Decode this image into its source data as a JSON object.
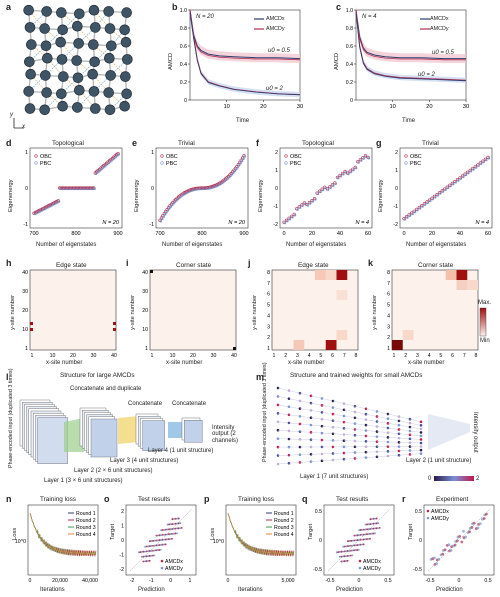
{
  "panels": {
    "a": {
      "label": "a",
      "axis_y": "y",
      "axis_x": "x"
    },
    "b": {
      "label": "b",
      "ylabel": "AMCD",
      "xlabel": "Time",
      "n_text": "N = 20",
      "legend": [
        "AMCDx",
        "AMCDy"
      ],
      "ann_hi": "u0 = 0.5",
      "ann_lo": "u0 = 2",
      "xticks": [
        "10",
        "20",
        "30"
      ],
      "yticks": [
        "0",
        "0.2",
        "0.4",
        "0.6",
        "0.8",
        "1.0"
      ]
    },
    "c": {
      "label": "c",
      "ylabel": "AMCD",
      "xlabel": "Time",
      "n_text": "N = 4",
      "legend": [
        "AMCDx",
        "AMCDy"
      ],
      "ann_hi": "u0 = 0.5",
      "ann_lo": "u0 = 2",
      "xticks": [
        "10",
        "20",
        "30"
      ],
      "yticks": [
        "0",
        "0.2",
        "0.4",
        "0.6",
        "0.8",
        "1.0"
      ]
    },
    "d": {
      "label": "d",
      "title": "Topological",
      "ylabel": "Eigenenergy",
      "xlabel": "Number of eigenstates",
      "legend": [
        "OBC",
        "PBC"
      ],
      "n_text": "N = 20",
      "xticks": [
        "700",
        "800",
        "900"
      ],
      "yticks": [
        "-1",
        "0",
        "1"
      ]
    },
    "e": {
      "label": "e",
      "title": "Trivial",
      "ylabel": "Eigenenergy",
      "xlabel": "Number of eigenstates",
      "legend": [
        "OBC",
        "PBC"
      ],
      "n_text": "N = 20",
      "xticks": [
        "700",
        "800",
        "900"
      ],
      "yticks": [
        "-1",
        "0",
        "1"
      ]
    },
    "f": {
      "label": "f",
      "title": "Topological",
      "ylabel": "Eigenenergy",
      "xlabel": "Number of eigenstates",
      "legend": [
        "OBC",
        "PBC"
      ],
      "n_text": "N = 4",
      "xticks": [
        "0",
        "20",
        "40",
        "60"
      ],
      "yticks": [
        "-2",
        "-1",
        "0",
        "1",
        "2"
      ]
    },
    "g": {
      "label": "g",
      "title": "Trivial",
      "ylabel": "Eigenenergy",
      "xlabel": "Number of eigenstates",
      "legend": [
        "OBC",
        "PBC"
      ],
      "n_text": "N = 4",
      "xticks": [
        "0",
        "20",
        "40",
        "60"
      ],
      "yticks": [
        "-2",
        "-1",
        "0",
        "1",
        "2"
      ]
    },
    "h": {
      "label": "h",
      "title": "Edge state",
      "ylabel": "y-site number",
      "xlabel": "x-site number",
      "xticks": [
        "1",
        "10",
        "20",
        "30",
        "40"
      ],
      "yticks": [
        "1",
        "10",
        "20",
        "30",
        "40"
      ]
    },
    "i": {
      "label": "i",
      "title": "Corner state",
      "ylabel": "y-site number",
      "xlabel": "x-site number",
      "xticks": [
        "1",
        "10",
        "20",
        "30",
        "40"
      ],
      "yticks": [
        "1",
        "10",
        "20",
        "30",
        "40"
      ]
    },
    "j": {
      "label": "j",
      "title": "Edge state",
      "ylabel": "y-site number",
      "xlabel": "x-site number",
      "xticks": [
        "1",
        "2",
        "3",
        "4",
        "5",
        "6",
        "7",
        "8"
      ],
      "yticks": [
        "1",
        "2",
        "3",
        "4",
        "5",
        "6",
        "7",
        "8"
      ]
    },
    "k": {
      "label": "k",
      "title": "Corner state",
      "ylabel": "y-site number",
      "xlabel": "x-site number",
      "xticks": [
        "1",
        "2",
        "3",
        "4",
        "5",
        "6",
        "7",
        "8"
      ],
      "yticks": [
        "1",
        "2",
        "3",
        "4",
        "5",
        "6",
        "7",
        "8"
      ],
      "cbar_max": "Max.",
      "cbar_min": "Min"
    },
    "l": {
      "label": "l",
      "title": "Structure for large AMCDs",
      "input": "Phase-encoded input (duplicated 3 times)",
      "concat_dup": "Concatenate and duplicate",
      "concat1": "Concatenate",
      "concat2": "Concatenate",
      "output": "Intensity output (2 channels)",
      "layer1": "Layer 1 (3 × 6 unit structures)",
      "layer2": "Layer 2 (2 × 6 unit structures)",
      "layer3": "Layer 3 (4 unit structures)",
      "layer4": "Layer 4 (1 unit structure)"
    },
    "m": {
      "label": "m",
      "title": "Structure and trained weights for small AMCDs",
      "input": "Phase-encoded input (duplicated 3 times)",
      "output": "Intensity output",
      "layer1": "Layer 1 (7 unit structures)",
      "layer2": "Layer 2 (1 unit structure)",
      "cbar_lo": "0",
      "cbar_hi": "2"
    },
    "n": {
      "label": "n",
      "title": "Training loss",
      "ylabel": "Loss",
      "xlabel": "Iterations",
      "legend": [
        "Round 1",
        "Round 2",
        "Round 3",
        "Round 4"
      ],
      "xticks": [
        "0",
        "20,000",
        "40,000"
      ],
      "ytick": "10^0"
    },
    "o": {
      "label": "o",
      "title": "Test results",
      "ylabel": "Target",
      "xlabel": "Prediction",
      "legend": [
        "AMCDx",
        "AMCDy"
      ],
      "xticks": [
        "-2",
        "-1",
        "0",
        "1"
      ],
      "yticks": [
        "-2",
        "-1",
        "0",
        "1",
        "2"
      ]
    },
    "p": {
      "label": "p",
      "title": "Training loss",
      "ylabel": "Loss",
      "xlabel": "Iterations",
      "legend": [
        "Round 1",
        "Round 2",
        "Round 3",
        "Round 4"
      ],
      "xticks": [
        "0",
        "5,000"
      ],
      "ytick": "10^0"
    },
    "q": {
      "label": "q",
      "title": "Test results",
      "ylabel": "Target",
      "xlabel": "Prediction",
      "legend": [
        "AMCDx",
        "AMCDy"
      ],
      "xticks": [
        "-0.5",
        "0",
        "0.5"
      ],
      "yticks": [
        "-0.5",
        "0",
        "0.5"
      ]
    },
    "r": {
      "label": "r",
      "title": "Experiment",
      "ylabel": "Target",
      "xlabel": "Prediction",
      "legend": [
        "AMCDx",
        "AMCDy"
      ],
      "xticks": [
        "-0.5",
        "0",
        "0.5"
      ],
      "yticks": [
        "-0.5",
        "0",
        "0.5"
      ]
    }
  },
  "colors": {
    "navy": "#2c3e70",
    "crimson": "#b03050",
    "pink": "#e8a0b0",
    "blue_light": "#7a9ad0",
    "green": "#3a9a4a",
    "orange": "#e08a2a",
    "red_dark": "#8b0000"
  },
  "chart_data": [
    {
      "panel": "b",
      "type": "line",
      "x": [
        0,
        1,
        2,
        3,
        5,
        8,
        12,
        18,
        24,
        30
      ],
      "series": [
        {
          "name": "AMCDx",
          "values": [
            1.0,
            0.72,
            0.6,
            0.55,
            0.51,
            0.49,
            0.48,
            0.47,
            0.47,
            0.46
          ]
        },
        {
          "name": "AMCDy",
          "values": [
            1.0,
            0.7,
            0.45,
            0.3,
            0.2,
            0.16,
            0.12,
            0.09,
            0.07,
            0.06
          ]
        }
      ],
      "ylim": [
        0,
        1
      ],
      "xlim": [
        0,
        30
      ]
    },
    {
      "panel": "c",
      "type": "line",
      "x": [
        0,
        1,
        2,
        3,
        5,
        8,
        12,
        18,
        24,
        30
      ],
      "series": [
        {
          "name": "AMCDx",
          "values": [
            1.0,
            0.7,
            0.58,
            0.53,
            0.5,
            0.48,
            0.47,
            0.47,
            0.46,
            0.46
          ]
        },
        {
          "name": "AMCDy",
          "values": [
            1.0,
            0.6,
            0.42,
            0.35,
            0.3,
            0.27,
            0.25,
            0.24,
            0.23,
            0.22
          ]
        }
      ],
      "ylim": [
        0,
        1
      ],
      "xlim": [
        0,
        30
      ]
    }
  ]
}
